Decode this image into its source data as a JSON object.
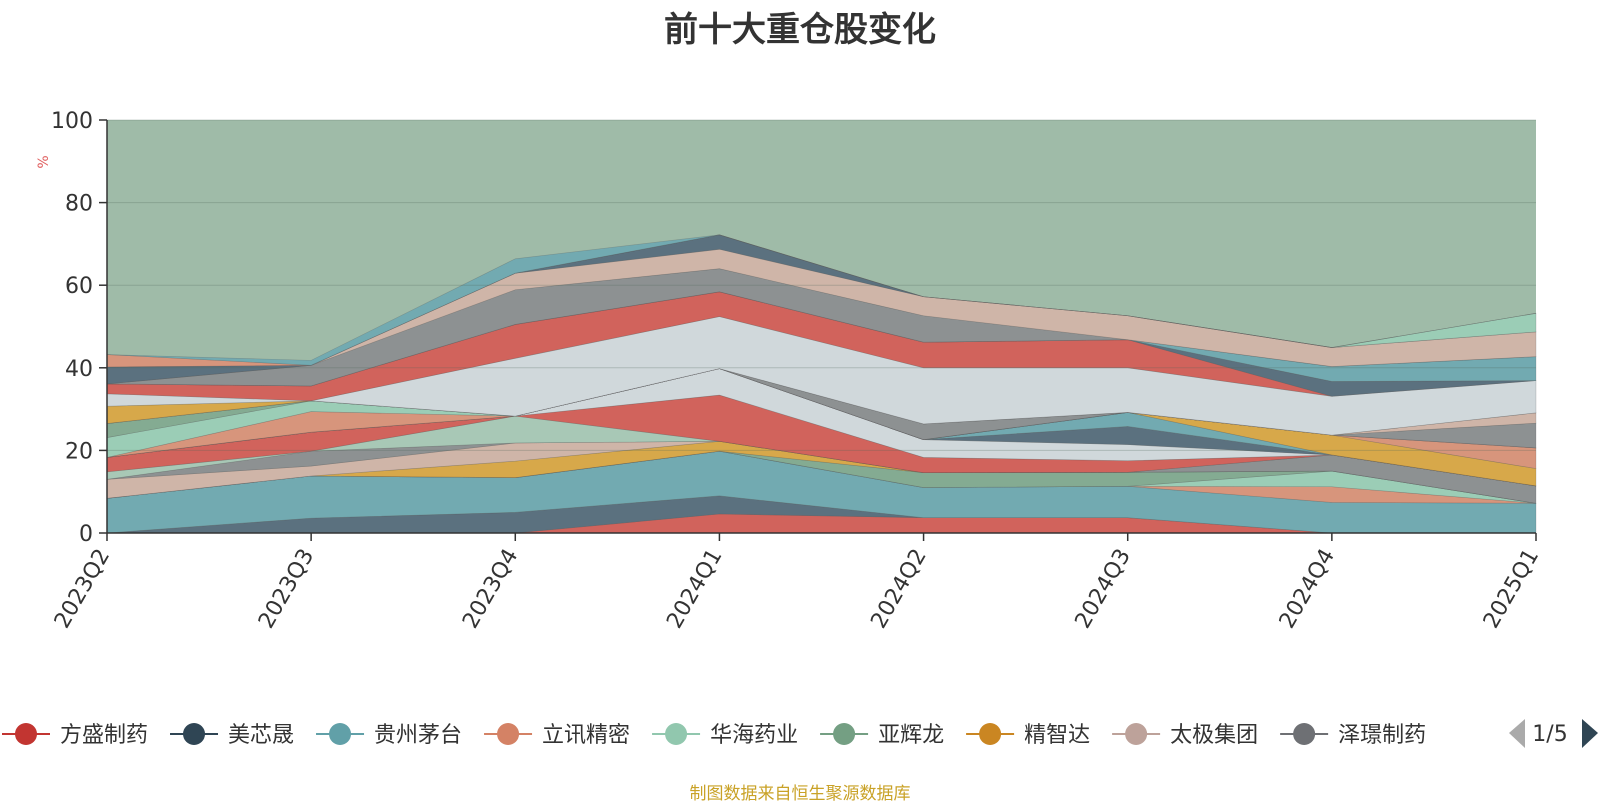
{
  "title": "前十大重仓股变化",
  "footer": "制图数据来自恒生聚源数据库",
  "pagination": {
    "label": "1/5"
  },
  "colors": {
    "background_area": "#9fbba8"
  },
  "chart_data": {
    "type": "area",
    "stacked": true,
    "title": "前十大重仓股变化",
    "ylabel": "%",
    "ylim": [
      0,
      100
    ],
    "yticks": [
      0,
      20,
      40,
      60,
      80,
      100
    ],
    "grid": true,
    "legend_position": "bottom",
    "categories": [
      "2023Q2",
      "2023Q3",
      "2023Q4",
      "2024Q1",
      "2024Q2",
      "2024Q3",
      "2024Q4",
      "2025Q1"
    ],
    "series": [
      {
        "name": "方盛制药",
        "color": "#d9534f",
        "values": [
          0,
          0,
          0,
          4.6,
          3.7,
          3.7,
          0,
          0
        ]
      },
      {
        "name": "美芯晟",
        "color": "#4f6478",
        "values": [
          0,
          3.6,
          5,
          4.4,
          0,
          0,
          0,
          0
        ]
      },
      {
        "name": "贵州茅台",
        "color": "#6aa7b3",
        "values": [
          8.4,
          10.2,
          8.4,
          10.8,
          7.3,
          7.6,
          7.4,
          7.2
        ]
      },
      {
        "name": "立讯精密",
        "color": "#e08e74",
        "values": [
          0,
          0,
          0,
          0,
          0,
          0,
          3.8,
          0
        ]
      },
      {
        "name": "华海药业",
        "color": "#9ad0b8",
        "values": [
          0,
          0,
          0,
          0,
          0,
          0,
          3.8,
          0
        ]
      },
      {
        "name": "亚辉龙",
        "color": "#7fa88e",
        "values": [
          0,
          0,
          0,
          0,
          3.6,
          3.4,
          0,
          0
        ]
      },
      {
        "name": "精智达",
        "color": "#e0a43a",
        "values": [
          0,
          0,
          4,
          2.4,
          0,
          0,
          0,
          0
        ]
      },
      {
        "name": "太极集团",
        "color": "#d7b4a8",
        "values": [
          4.6,
          2.4,
          4.4,
          0,
          0,
          0,
          0,
          0
        ]
      },
      {
        "name": "泽璟制药",
        "color": "#8a8a8e",
        "values": [
          0,
          3.6,
          0,
          0,
          0,
          0,
          3.9,
          4.2
        ]
      },
      {
        "name": "",
        "color": "#a9cab9",
        "values": [
          1.8,
          0,
          6.5,
          0,
          0,
          0,
          0,
          0
        ]
      },
      {
        "name": "",
        "color": "#d9534f",
        "values": [
          3.5,
          4.6,
          0,
          11.2,
          3.7,
          2.8,
          0,
          0
        ]
      },
      {
        "name": "",
        "color": "#d8dde4",
        "values": [
          0,
          0,
          0,
          6.4,
          4.3,
          3.9,
          0,
          0
        ]
      },
      {
        "name": "",
        "color": "#4f6478",
        "values": [
          0,
          0,
          0,
          0,
          0,
          4.4,
          0,
          0
        ]
      },
      {
        "name": "",
        "color": "#6aa7b3",
        "values": [
          0,
          0,
          0,
          0,
          0,
          3.4,
          0,
          0
        ]
      },
      {
        "name": "",
        "color": "#e0a43a",
        "values": [
          0,
          0,
          0,
          0,
          0,
          0,
          4.8,
          4.2
        ]
      },
      {
        "name": "",
        "color": "#e08e74",
        "values": [
          0,
          5,
          0,
          0,
          0,
          0,
          0,
          5
        ]
      },
      {
        "name": "",
        "color": "#9ad0b8",
        "values": [
          4.8,
          2.6,
          0,
          0,
          0,
          0,
          0,
          0
        ]
      },
      {
        "name": "",
        "color": "#7fa88e",
        "values": [
          3.4,
          0,
          0,
          0,
          0,
          0,
          0,
          0
        ]
      },
      {
        "name": "",
        "color": "#8a8a8e",
        "values": [
          0,
          0,
          0,
          0,
          3.8,
          0,
          0,
          6
        ]
      },
      {
        "name": "",
        "color": "#d7b4a8",
        "values": [
          0,
          0,
          0,
          0,
          0,
          0,
          0,
          2.5
        ]
      },
      {
        "name": "",
        "color": "#e0a43a",
        "values": [
          4.2,
          0,
          0,
          0,
          0,
          0,
          0,
          0
        ]
      },
      {
        "name": "",
        "color": "#d8dde4",
        "values": [
          3,
          0,
          14,
          12.6,
          13.6,
          10.8,
          9.4,
          7.8
        ]
      },
      {
        "name": "",
        "color": "#d9534f",
        "values": [
          2.4,
          3.6,
          8.2,
          6,
          6.2,
          6.8,
          0,
          0
        ]
      },
      {
        "name": "",
        "color": "#4f6478",
        "values": [
          0,
          0,
          0,
          0,
          0,
          0,
          3.6,
          0
        ]
      },
      {
        "name": "",
        "color": "#6aa7b3",
        "values": [
          0,
          0,
          0,
          0,
          0,
          0,
          3.6,
          5.8
        ]
      },
      {
        "name": "",
        "color": "#8a8a8e",
        "values": [
          0,
          5,
          8.4,
          5.6,
          6.4,
          0,
          0,
          0
        ]
      },
      {
        "name": "",
        "color": "#d7b4a8",
        "values": [
          0,
          0,
          4,
          4.7,
          4.6,
          5.8,
          4.6,
          6
        ]
      },
      {
        "name": "",
        "color": "#4f6478",
        "values": [
          4.1,
          0,
          0,
          3.5,
          0,
          0,
          0,
          0
        ]
      },
      {
        "name": "",
        "color": "#9ad0b8",
        "values": [
          0,
          0,
          0,
          0,
          0,
          0,
          0,
          4.5
        ]
      },
      {
        "name": "",
        "color": "#e08e74",
        "values": [
          3,
          0,
          0,
          0,
          0,
          0,
          0,
          0
        ]
      },
      {
        "name": "",
        "color": "#6aa7b3",
        "values": [
          0,
          1.2,
          3.5,
          0,
          0,
          0,
          0,
          0
        ]
      }
    ]
  },
  "legend": [
    {
      "name": "方盛制药",
      "color": "#c23531"
    },
    {
      "name": "美芯晟",
      "color": "#2f4554"
    },
    {
      "name": "贵州茅台",
      "color": "#61a0a8"
    },
    {
      "name": "立讯精密",
      "color": "#d48265"
    },
    {
      "name": "华海药业",
      "color": "#91c7ae"
    },
    {
      "name": "亚辉龙",
      "color": "#749f83"
    },
    {
      "name": "精智达",
      "color": "#ca8622"
    },
    {
      "name": "太极集团",
      "color": "#bda29a"
    },
    {
      "name": "泽璟制药",
      "color": "#6e7074"
    }
  ]
}
